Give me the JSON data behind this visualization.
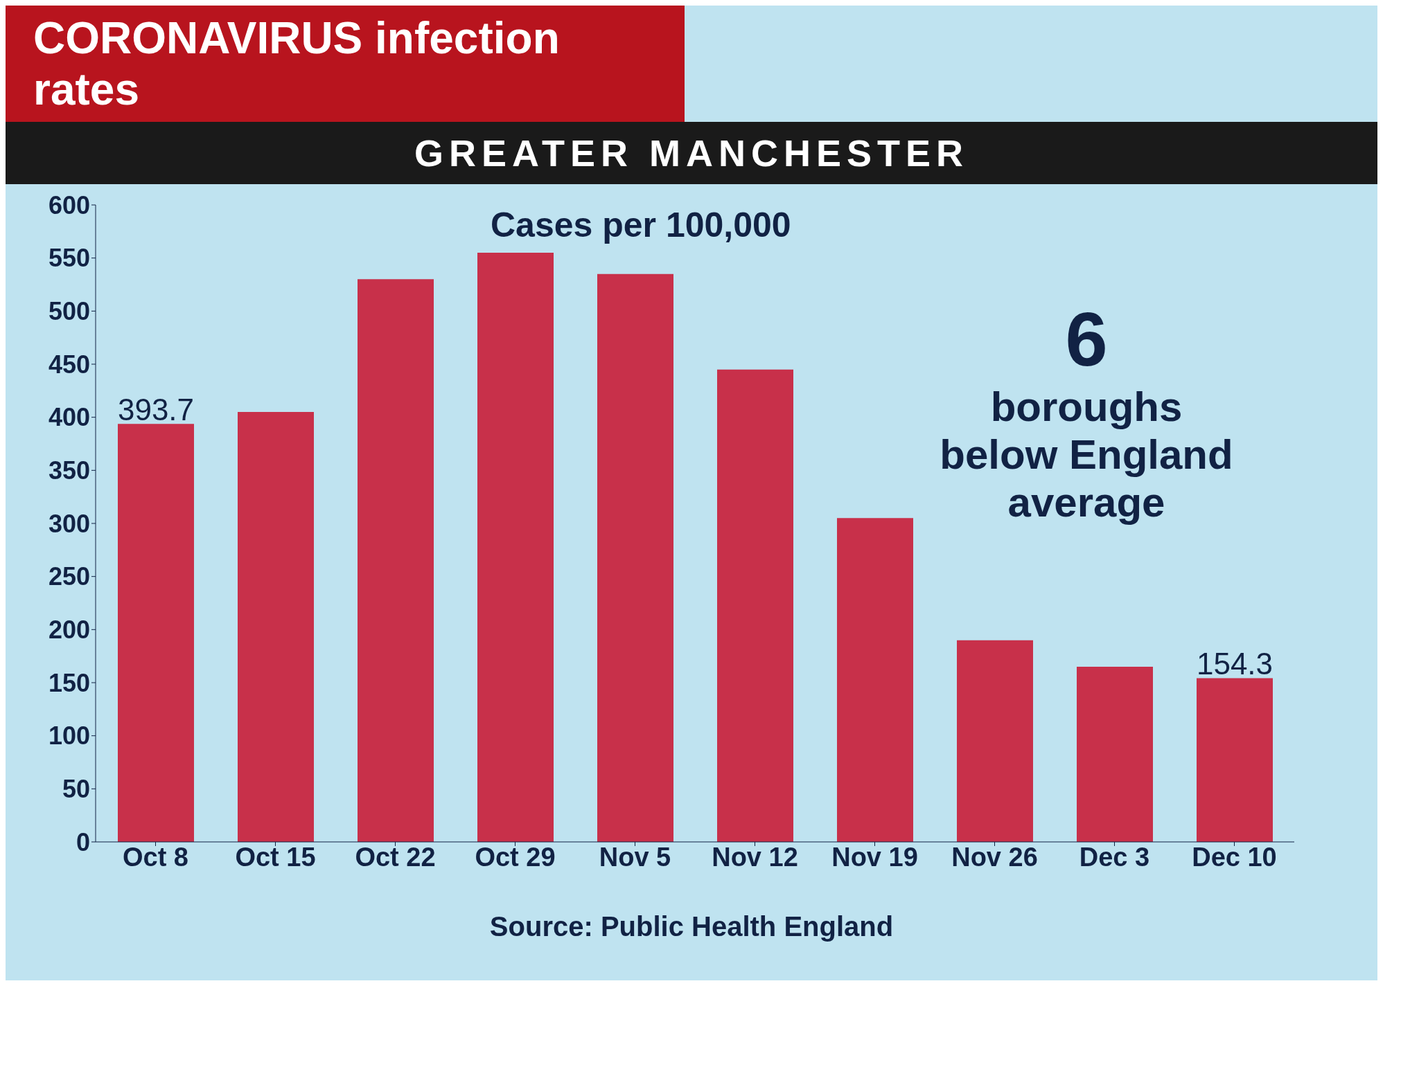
{
  "chart_data": {
    "type": "bar",
    "title": "CORONAVIRUS infection rates",
    "subtitle": "GREATER MANCHESTER",
    "categories": [
      "Oct 8",
      "Oct 15",
      "Oct 22",
      "Oct 29",
      "Nov 5",
      "Nov 12",
      "Nov 19",
      "Nov 26",
      "Dec 3",
      "Dec 10"
    ],
    "values": [
      393.7,
      405,
      530,
      555,
      535,
      445,
      305,
      190,
      165,
      154.3
    ],
    "value_labels": [
      "393.7",
      null,
      null,
      null,
      null,
      null,
      null,
      null,
      null,
      "154.3"
    ],
    "color": "#c8304a",
    "ylim": [
      0,
      600
    ],
    "yticks": [
      0,
      50,
      100,
      150,
      200,
      250,
      300,
      350,
      400,
      450,
      500,
      550,
      600
    ],
    "annotations": [
      "Cases per 100,000",
      "6",
      "boroughs below England average",
      "Source: Public Health England"
    ]
  }
}
